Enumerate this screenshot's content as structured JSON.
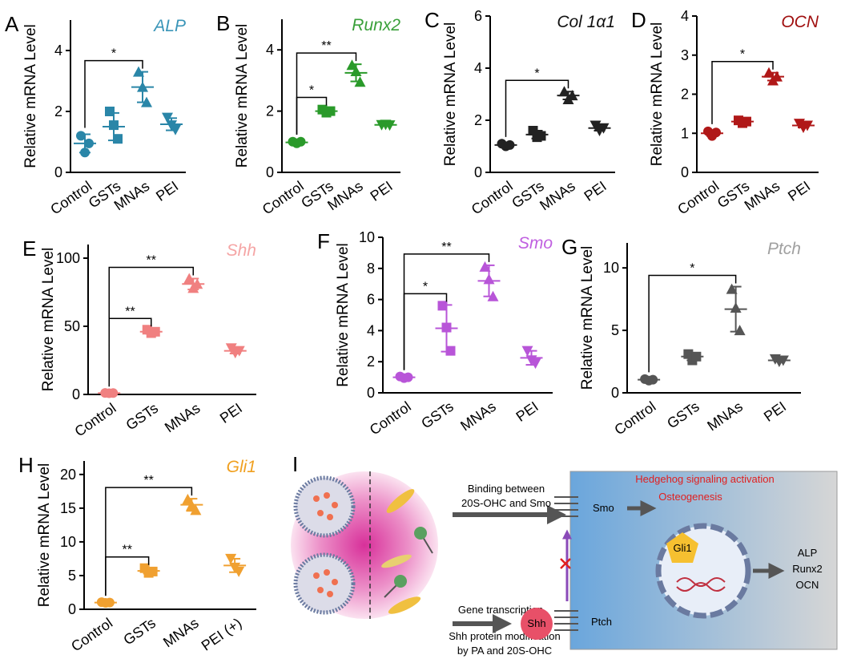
{
  "chart_data": [
    {
      "type": "dot",
      "panel": "A",
      "title": "ALP",
      "title_color": "#3a95b8",
      "color": "#2a86a8",
      "ylabel": "Relative mRNA Level",
      "categories": [
        "Control",
        "GSTs",
        "MNAs",
        "PEI"
      ],
      "markers": [
        "circle",
        "square",
        "triangle-up",
        "triangle-down"
      ],
      "points": [
        [
          1.2,
          0.65,
          0.95
        ],
        [
          2.0,
          1.55,
          1.1
        ],
        [
          3.3,
          2.8,
          2.3
        ],
        [
          1.8,
          1.55,
          1.4
        ]
      ],
      "means": [
        0.95,
        1.5,
        2.8,
        1.58
      ],
      "sd": [
        0.3,
        0.45,
        0.5,
        0.2
      ],
      "ylim": [
        0,
        5
      ],
      "yticks": [
        0,
        2,
        4
      ],
      "significance": [
        {
          "from": 0,
          "to": 2,
          "label": "*"
        }
      ]
    },
    {
      "type": "dot",
      "panel": "B",
      "title": "Runx2",
      "title_color": "#3aa03a",
      "color": "#2a9a2a",
      "ylabel": "Relative mRNA Level",
      "categories": [
        "Control",
        "GSTs",
        "MNAs",
        "PEI"
      ],
      "markers": [
        "circle",
        "square",
        "triangle-up",
        "triangle-down"
      ],
      "points": [
        [
          1.0,
          0.95,
          1.0
        ],
        [
          2.05,
          1.95,
          2.0
        ],
        [
          3.5,
          3.3,
          2.95
        ],
        [
          1.55,
          1.56,
          1.54
        ]
      ],
      "means": [
        0.98,
        2.0,
        3.25,
        1.55
      ],
      "sd": [
        0.04,
        0.08,
        0.28,
        0.03
      ],
      "ylim": [
        0,
        5
      ],
      "yticks": [
        0,
        2,
        4
      ],
      "significance": [
        {
          "from": 0,
          "to": 1,
          "label": "*"
        },
        {
          "from": 0,
          "to": 2,
          "label": "**"
        }
      ]
    },
    {
      "type": "dot",
      "panel": "C",
      "title": "Col 1α1",
      "title_color": "#111111",
      "color": "#222222",
      "ylabel": "Relative mRNA Level",
      "categories": [
        "Control",
        "GSTs",
        "MNAs",
        "PEI"
      ],
      "markers": [
        "circle",
        "square",
        "triangle-up",
        "triangle-down"
      ],
      "points": [
        [
          1.1,
          1.0,
          1.05
        ],
        [
          1.6,
          1.35,
          1.4
        ],
        [
          3.1,
          2.8,
          2.95
        ],
        [
          1.8,
          1.6,
          1.7
        ]
      ],
      "means": [
        1.05,
        1.45,
        2.95,
        1.7
      ],
      "sd": [
        0.06,
        0.15,
        0.15,
        0.1
      ],
      "ylim": [
        0,
        6
      ],
      "yticks": [
        0,
        2,
        4,
        6
      ],
      "significance": [
        {
          "from": 0,
          "to": 2,
          "label": "*"
        }
      ]
    },
    {
      "type": "dot",
      "panel": "D",
      "title": "OCN",
      "title_color": "#a01010",
      "color": "#b01818",
      "ylabel": "Relative mRNA Level",
      "categories": [
        "Control",
        "GSTs",
        "MNAs",
        "PEI"
      ],
      "markers": [
        "circle",
        "square",
        "triangle-up",
        "triangle-down"
      ],
      "points": [
        [
          1.05,
          0.93,
          1.02
        ],
        [
          1.33,
          1.26,
          1.3
        ],
        [
          2.55,
          2.35,
          2.45
        ],
        [
          1.25,
          1.15,
          1.2
        ]
      ],
      "means": [
        1.0,
        1.3,
        2.45,
        1.2
      ],
      "sd": [
        0.07,
        0.05,
        0.1,
        0.05
      ],
      "ylim": [
        0,
        4
      ],
      "yticks": [
        0,
        1,
        2,
        3,
        4
      ],
      "significance": [
        {
          "from": 0,
          "to": 2,
          "label": "*"
        }
      ]
    },
    {
      "type": "dot",
      "panel": "E",
      "title": "Shh",
      "title_color": "#f5a5a5",
      "color": "#f08080",
      "ylabel": "Relative mRNA Level",
      "categories": [
        "Control",
        "GSTs",
        "MNAs",
        "PEI"
      ],
      "markers": [
        "circle",
        "square",
        "triangle-up",
        "triangle-down"
      ],
      "points": [
        [
          1.1,
          0.9,
          1.0
        ],
        [
          47.5,
          45,
          46
        ],
        [
          85,
          78,
          81
        ],
        [
          34,
          30.5,
          32
        ]
      ],
      "means": [
        1,
        46,
        81,
        32
      ],
      "sd": [
        0.1,
        1.5,
        4,
        2
      ],
      "ylim": [
        0,
        110
      ],
      "yticks": [
        0,
        50,
        100
      ],
      "significance": [
        {
          "from": 0,
          "to": 1,
          "label": "**"
        },
        {
          "from": 0,
          "to": 2,
          "label": "**"
        }
      ]
    },
    {
      "type": "dot",
      "panel": "F",
      "title": "Smo",
      "title_color": "#c060e0",
      "color": "#b855d8",
      "ylabel": "Relative mRNA Level",
      "categories": [
        "Control",
        "GSTs",
        "MNAs",
        "PEI"
      ],
      "markers": [
        "circle",
        "square",
        "triangle-up",
        "triangle-down"
      ],
      "points": [
        [
          1.05,
          0.95,
          1.0
        ],
        [
          5.6,
          4.2,
          2.7
        ],
        [
          8.1,
          7.3,
          6.2
        ],
        [
          2.7,
          2.1,
          1.9
        ]
      ],
      "means": [
        1.0,
        4.15,
        7.2,
        2.25
      ],
      "sd": [
        0.05,
        1.5,
        1.0,
        0.45
      ],
      "ylim": [
        0,
        10
      ],
      "yticks": [
        0,
        2,
        4,
        6,
        8,
        10
      ],
      "significance": [
        {
          "from": 0,
          "to": 1,
          "label": "*"
        },
        {
          "from": 0,
          "to": 2,
          "label": "**"
        }
      ]
    },
    {
      "type": "dot",
      "panel": "G",
      "title": "Ptch",
      "title_color": "#a0a0a0",
      "color": "#555555",
      "ylabel": "Relative mRNA Level",
      "categories": [
        "Control",
        "GSTs",
        "MNAs",
        "PEI"
      ],
      "markers": [
        "circle",
        "square",
        "triangle-up",
        "triangle-down"
      ],
      "points": [
        [
          1.1,
          0.98,
          1.05
        ],
        [
          3.1,
          2.6,
          2.9
        ],
        [
          8.3,
          6.8,
          5.0
        ],
        [
          2.7,
          2.5,
          2.6
        ]
      ],
      "means": [
        1.05,
        2.9,
        6.7,
        2.6
      ],
      "sd": [
        0.08,
        0.3,
        1.8,
        0.1
      ],
      "ylim": [
        0,
        12
      ],
      "yticks": [
        0,
        5,
        10
      ],
      "significance": [
        {
          "from": 0,
          "to": 2,
          "label": "*"
        }
      ]
    },
    {
      "type": "dot",
      "panel": "H",
      "title": "Gli1",
      "title_color": "#f0a020",
      "color": "#f0a030",
      "ylabel": "Relative mRNA Level",
      "categories": [
        "Control",
        "GSTs",
        "MNAs",
        "PEI (+)"
      ],
      "markers": [
        "circle",
        "square",
        "triangle-up",
        "triangle-down"
      ],
      "points": [
        [
          1.05,
          0.95,
          1.0
        ],
        [
          6.1,
          5.4,
          5.6
        ],
        [
          16.3,
          15.4,
          14.7
        ],
        [
          7.5,
          6.2,
          5.6
        ]
      ],
      "means": [
        1.0,
        5.7,
        15.5,
        6.5
      ],
      "sd": [
        0.05,
        0.4,
        0.9,
        1.0
      ],
      "ylim": [
        0,
        22
      ],
      "yticks": [
        0,
        5,
        10,
        15,
        20
      ],
      "significance": [
        {
          "from": 0,
          "to": 1,
          "label": "**"
        },
        {
          "from": 0,
          "to": 2,
          "label": "**"
        }
      ]
    }
  ],
  "diagram": {
    "panel": "I",
    "binding_1": "Binding between",
    "binding_2": "20S-OHC and Smo",
    "transcription": "Gene transcription",
    "modification_1": "Shh protein modification",
    "modification_2": "by PA and 20S-OHC",
    "hedgehog": "Hedgehog signaling activation",
    "osteogenesis": "Osteogenesis",
    "smo": "Smo",
    "ptch": "Ptch",
    "shh": "Shh",
    "gli1": "Gli1",
    "outputs": [
      "ALP",
      "Runx2",
      "OCN"
    ]
  }
}
